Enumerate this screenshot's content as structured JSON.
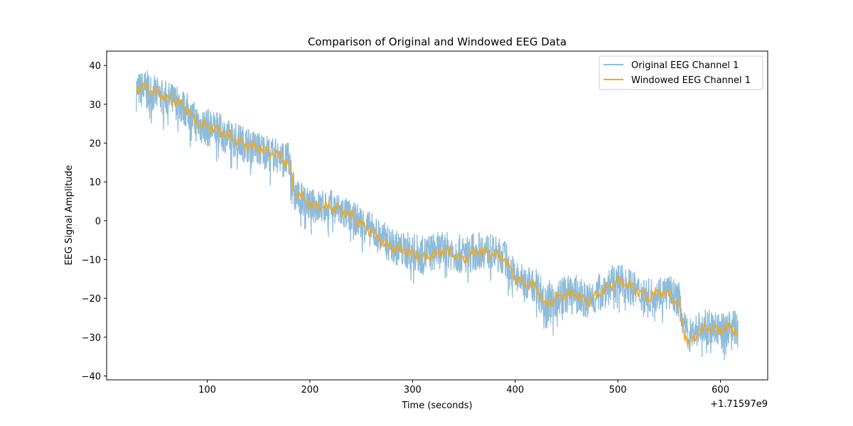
{
  "chart_data": {
    "type": "line",
    "title": "Comparison of Original and Windowed EEG Data",
    "xlabel": "Time (seconds)",
    "ylabel": "EEG Signal Amplitude",
    "x_offset_label": "+1.71597e9",
    "xlim": [
      2,
      646
    ],
    "ylim": [
      -41,
      43.7
    ],
    "xticks": [
      100,
      200,
      300,
      400,
      500,
      600
    ],
    "yticks": [
      -40,
      -30,
      -20,
      -10,
      0,
      10,
      20,
      30,
      40
    ],
    "grid": false,
    "legend_position": "top-right",
    "colors": {
      "original": "#1f77b4",
      "original_alpha": 0.5,
      "windowed": "#ffa500"
    },
    "series": [
      {
        "name": "Original EEG Channel 1",
        "kind": "noisy band",
        "x": [
          31,
          40,
          50,
          60,
          70,
          80,
          90,
          100,
          110,
          120,
          130,
          140,
          150,
          160,
          170,
          180,
          185,
          190,
          200,
          210,
          220,
          230,
          240,
          250,
          260,
          270,
          280,
          290,
          300,
          310,
          320,
          330,
          340,
          350,
          360,
          370,
          380,
          390,
          400,
          410,
          420,
          430,
          440,
          450,
          460,
          470,
          480,
          490,
          500,
          510,
          520,
          530,
          540,
          550,
          560,
          565,
          570,
          580,
          590,
          600,
          610,
          617
        ],
        "upper": [
          39,
          40,
          38,
          37,
          36,
          34,
          31,
          30,
          29,
          27,
          26,
          25,
          24,
          23,
          22,
          21,
          12,
          11,
          9,
          9,
          9,
          8,
          6,
          5,
          3,
          1,
          -1,
          -2,
          -2,
          -3,
          -2,
          -2,
          -2,
          -3,
          -2,
          -2,
          -3,
          -4,
          -9,
          -11,
          -11,
          -14,
          -14,
          -13,
          -13,
          -15,
          -13,
          -11,
          -10,
          -11,
          -13,
          -14,
          -13,
          -13,
          -15,
          -23,
          -24,
          -22,
          -22,
          -23,
          -22,
          -22
        ],
        "lower": [
          29,
          27,
          27,
          26,
          25,
          23,
          19,
          18,
          18,
          16,
          15,
          14,
          13,
          12,
          11,
          9,
          1,
          1,
          -1,
          -2,
          -2,
          -3,
          -4,
          -6,
          -8,
          -10,
          -12,
          -13,
          -14,
          -15,
          -14,
          -13,
          -14,
          -15,
          -14,
          -13,
          -14,
          -15,
          -20,
          -21,
          -22,
          -29,
          -26,
          -25,
          -25,
          -27,
          -25,
          -23,
          -22,
          -22,
          -24,
          -25,
          -24,
          -24,
          -26,
          -33,
          -35,
          -33,
          -33,
          -34,
          -33,
          -34
        ]
      },
      {
        "name": "Windowed EEG Channel 1",
        "kind": "line",
        "x": [
          31,
          40,
          50,
          60,
          70,
          80,
          90,
          100,
          110,
          120,
          130,
          140,
          150,
          160,
          170,
          180,
          185,
          190,
          200,
          210,
          220,
          230,
          240,
          250,
          260,
          270,
          280,
          290,
          300,
          310,
          320,
          330,
          340,
          350,
          360,
          370,
          380,
          390,
          400,
          410,
          420,
          430,
          440,
          450,
          460,
          470,
          480,
          490,
          500,
          510,
          520,
          530,
          540,
          550,
          560,
          565,
          570,
          580,
          590,
          600,
          610,
          617
        ],
        "y": [
          34,
          34.5,
          33,
          31.8,
          30.7,
          29,
          25,
          24.5,
          23.5,
          22,
          20.6,
          19.3,
          18.8,
          17.9,
          16.6,
          14.2,
          7.4,
          6.5,
          4.1,
          3.7,
          3.6,
          2.8,
          1.4,
          -0.8,
          -2.7,
          -5.4,
          -6.9,
          -7.8,
          -8.3,
          -9.4,
          -9.1,
          -7.6,
          -8.7,
          -10,
          -8.1,
          -7.8,
          -8.7,
          -10,
          -14.6,
          -16.4,
          -16.8,
          -21.9,
          -20,
          -18.8,
          -19.1,
          -21,
          -19.1,
          -17.3,
          -15.5,
          -16.4,
          -18.2,
          -20,
          -18.2,
          -19.1,
          -21.9,
          -29.2,
          -32,
          -28.3,
          -27.7,
          -28.3,
          -27.4,
          -28.8
        ]
      }
    ]
  }
}
